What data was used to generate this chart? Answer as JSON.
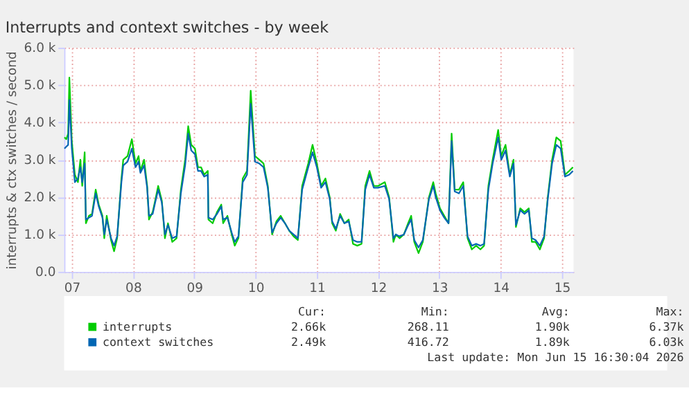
{
  "chart_data": {
    "type": "line",
    "title": "Interrupts and context switches - by week",
    "ylabel": "interrupts & ctx switches / second",
    "x": [
      7.38,
      7.41,
      7.44,
      7.46,
      7.5,
      7.55,
      7.6,
      7.64,
      7.67,
      7.71,
      7.73,
      7.78,
      7.83,
      7.89,
      7.94,
      8.0,
      8.03,
      8.07,
      8.14,
      8.19,
      8.24,
      8.31,
      8.34,
      8.41,
      8.48,
      8.54,
      8.59,
      8.62,
      8.68,
      8.73,
      8.76,
      8.82,
      8.86,
      8.91,
      8.97,
      9.02,
      9.07,
      9.14,
      9.21,
      9.28,
      9.35,
      9.4,
      9.45,
      9.51,
      9.56,
      9.61,
      9.66,
      9.72,
      9.73,
      9.8,
      9.87,
      9.94,
      9.97,
      10.04,
      10.11,
      10.16,
      10.22,
      10.29,
      10.36,
      10.42,
      10.49,
      10.56,
      10.63,
      10.7,
      10.77,
      10.84,
      10.91,
      10.98,
      11.05,
      11.12,
      11.19,
      11.26,
      11.36,
      11.43,
      11.5,
      11.57,
      11.64,
      11.71,
      11.75,
      11.81,
      11.88,
      11.95,
      12.02,
      12.09,
      12.16,
      12.23,
      12.29,
      12.36,
      12.43,
      12.5,
      12.61,
      12.68,
      12.75,
      12.79,
      12.85,
      12.92,
      12.99,
      13.04,
      13.09,
      13.16,
      13.23,
      13.33,
      13.4,
      13.44,
      13.51,
      13.58,
      13.65,
      13.7,
      13.75,
      13.82,
      13.89,
      13.96,
      14.03,
      14.1,
      14.17,
      14.23,
      14.3,
      14.37,
      14.46,
      14.51,
      14.58,
      14.65,
      14.71,
      14.75,
      14.82,
      14.89,
      14.96,
      15.01,
      15.07,
      15.14,
      15.21,
      15.27,
      15.34,
      15.41,
      15.48,
      15.55,
      15.62,
      15.68
    ],
    "series": [
      {
        "name": "interrupts",
        "color": "#00cc00",
        "values": [
          3600,
          3550,
          3700,
          5200,
          3500,
          2600,
          2400,
          3000,
          2300,
          3200,
          1300,
          1500,
          1550,
          2200,
          1800,
          1500,
          900,
          1500,
          850,
          550,
          900,
          2500,
          3000,
          3100,
          3550,
          2900,
          3100,
          2700,
          3000,
          2300,
          1400,
          1600,
          1900,
          2300,
          1900,
          900,
          1300,
          800,
          900,
          2200,
          3000,
          3900,
          3400,
          3300,
          2800,
          2800,
          2600,
          2700,
          1400,
          1300,
          1600,
          1800,
          1300,
          1500,
          1000,
          700,
          900,
          2500,
          2700,
          4850,
          3100,
          3000,
          2900,
          2300,
          1000,
          1350,
          1500,
          1300,
          1100,
          950,
          850,
          2300,
          2900,
          3400,
          2900,
          2300,
          2500,
          2000,
          1300,
          1100,
          1550,
          1300,
          1400,
          750,
          700,
          750,
          2300,
          2700,
          2300,
          2300,
          2400,
          2000,
          800,
          1000,
          900,
          1000,
          1300,
          1500,
          800,
          500,
          800,
          2000,
          2400,
          2100,
          1700,
          1500,
          1300,
          3700,
          2200,
          2200,
          2400,
          900,
          600,
          700,
          600,
          700,
          2300,
          3000,
          3800,
          3100,
          3400,
          2600,
          3000,
          1200,
          1700,
          1600,
          1700,
          800,
          800,
          600,
          900,
          2000,
          3000,
          3600,
          3500,
          2600,
          2700,
          2800
        ]
      },
      {
        "name": "context switches",
        "color": "#0066b3",
        "values": [
          3300,
          3350,
          3400,
          4600,
          3300,
          2400,
          2500,
          2800,
          2400,
          2900,
          1400,
          1450,
          1500,
          2100,
          1750,
          1450,
          1000,
          1400,
          900,
          700,
          950,
          2400,
          2850,
          2950,
          3300,
          2800,
          2950,
          2650,
          2850,
          2250,
          1500,
          1550,
          1850,
          2200,
          1850,
          1000,
          1250,
          900,
          950,
          2100,
          2850,
          3700,
          3250,
          3150,
          2700,
          2700,
          2550,
          2600,
          1450,
          1400,
          1550,
          1750,
          1400,
          1450,
          1050,
          800,
          950,
          2400,
          2600,
          4500,
          2950,
          2900,
          2800,
          2250,
          1050,
          1300,
          1450,
          1300,
          1100,
          1000,
          900,
          2200,
          2800,
          3200,
          2800,
          2250,
          2400,
          1950,
          1350,
          1150,
          1500,
          1300,
          1350,
          850,
          800,
          800,
          2200,
          2600,
          2250,
          2250,
          2300,
          1950,
          900,
          1000,
          950,
          1000,
          1250,
          1400,
          850,
          650,
          850,
          1950,
          2300,
          2000,
          1650,
          1450,
          1300,
          3500,
          2150,
          2100,
          2300,
          950,
          700,
          750,
          700,
          750,
          2200,
          2900,
          3600,
          3000,
          3250,
          2550,
          2900,
          1250,
          1650,
          1550,
          1650,
          900,
          850,
          700,
          950,
          1950,
          2900,
          3400,
          3300,
          2550,
          2600,
          2700
        ]
      }
    ],
    "xlim": [
      7.375,
      15.69
    ],
    "xticks": [
      {
        "value": 7.5,
        "label": "07"
      },
      {
        "value": 8.5,
        "label": "08"
      },
      {
        "value": 9.5,
        "label": "09"
      },
      {
        "value": 10.5,
        "label": "10"
      },
      {
        "value": 11.5,
        "label": "11"
      },
      {
        "value": 12.5,
        "label": "12"
      },
      {
        "value": 13.5,
        "label": "13"
      },
      {
        "value": 14.5,
        "label": "14"
      },
      {
        "value": 15.5,
        "label": "15"
      }
    ],
    "ylim": [
      0,
      6000
    ],
    "yticks": [
      {
        "value": 0,
        "label": "0.0"
      },
      {
        "value": 1000,
        "label": "1.0 k"
      },
      {
        "value": 2000,
        "label": "2.0 k"
      },
      {
        "value": 3000,
        "label": "3.0 k"
      },
      {
        "value": 4000,
        "label": "4.0 k"
      },
      {
        "value": 5000,
        "label": "5.0 k"
      },
      {
        "value": 6000,
        "label": "6.0 k"
      }
    ],
    "grid": true,
    "legend": "bottom",
    "line_style": "solid",
    "annotations": [
      "Cur:",
      "Min:",
      "Avg:",
      "Max:",
      "2.66k",
      "268.11",
      "1.90k",
      "6.37k",
      "2.49k",
      "416.72",
      "1.89k",
      "6.03k",
      "Last update: Mon Jun 15 16:30:04 2026"
    ]
  }
}
